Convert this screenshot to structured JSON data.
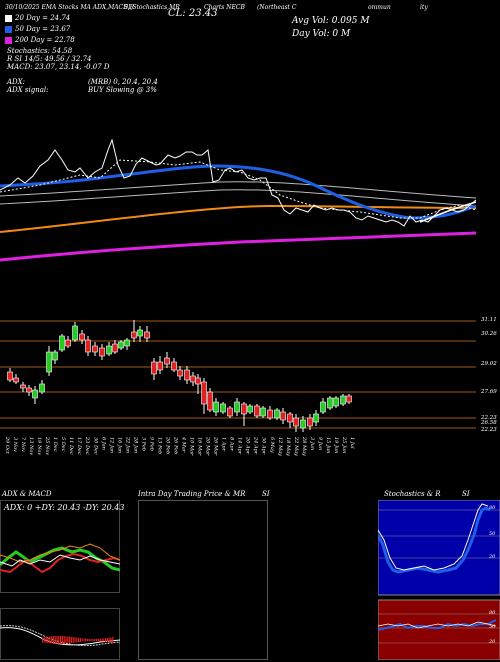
{
  "header": {
    "row1": [
      "30/10/2025 EMA Stocks MA ADX,MACD,R",
      "SI,Stochastics,MR",
      "CL: 23.43",
      "Charts NECB",
      "(Northeast C",
      "ommun",
      "ity"
    ],
    "avg_vol": "Avg Vol: 0.095 M",
    "day_vol": "Day Vol: 0 M",
    "ma20": "20 Day = 24.74",
    "ma50": "50 Day = 23.67",
    "ma200": "200 Day = 22.78",
    "stoch": "Stochastics: 54.58",
    "rsi": "R SI 14/5: 49.56 / 32.74",
    "macd": "MACD: 23.07, 23.14, -0.07 D",
    "adx": "ADX:",
    "adx_signal": "ADX signal:",
    "mrb": "(MRB) 0, 20.4, 20.4",
    "signal": "BUY Slowing @ 3%"
  },
  "colors": {
    "ma20": "#ffffff",
    "ma50": "#1f5fe6",
    "ma200": "#e020e0",
    "orange": "#f08a10",
    "up": "#22cc22",
    "down": "#dd2222",
    "level": "#a05a10",
    "panel_red": "#8a0000",
    "panel_blue": "#0000aa"
  },
  "chart_data": {
    "type": "candlestick",
    "price_levels": [
      "31.11",
      "30.26",
      "29.02",
      "27.69",
      "26.58",
      "22.23",
      "22.23"
    ],
    "dates": [
      "29 Oct",
      "31 Oct",
      "3 Nov",
      "5 Nov",
      "7 Nov",
      "11 Nov",
      "13 Nov",
      "17 Nov",
      "19 Nov",
      "21 Nov",
      "25 Nov",
      "27 Nov",
      "1 Dec",
      "3 Dec",
      "5 Dec",
      "9 Dec",
      "11 Dec",
      "15 Dec",
      "17 Dec",
      "19 Dec",
      "23 Dec",
      "26 Dec",
      "30 Dec",
      "2 Jan",
      "6 Jan",
      "8 Jan",
      "12 Jan",
      "14 Jan",
      "16 Jan",
      "20 Jan",
      "22 Jan",
      "26 Jan",
      "28 Jan",
      "30 Jan",
      "3 Feb",
      "5 Feb",
      "9 Feb",
      "11 Feb",
      "13 Feb",
      "18 Feb",
      "20 Feb",
      "24 Feb",
      "26 Feb",
      "2 Mar",
      "4 Mar",
      "6 Mar",
      "10 Mar",
      "12 Mar",
      "16 Mar",
      "18 Mar",
      "20 Mar",
      "24 Mar",
      "26 Mar",
      "30 Mar",
      "1 Apr",
      "6 Apr",
      "8 Apr",
      "10 Apr",
      "14 Apr",
      "16 Apr",
      "20 Apr",
      "22 Apr",
      "24 Apr",
      "28 Apr",
      "30 Apr",
      "4 May",
      "6 May",
      "8 May",
      "12 May",
      "14 May",
      "18 May",
      "20 May",
      "22 May",
      "26 May",
      "28 May",
      "1 Jun",
      "3 Jun",
      "5 Jun",
      "9 Jun",
      "11 Jun",
      "15 Jun",
      "17 Jun",
      "19 Jun",
      "23 Jun",
      "25 Jun",
      "29 Jun",
      "1 Jul"
    ]
  },
  "panels": {
    "adx_title": "ADX & MACD",
    "adx_values": "ADX: 0 +DY: 20.43 -DY: 20.43",
    "intraday_title": "Intra Day Trading Price & MR",
    "intraday_si": "SI",
    "stoch_title": "Stochastics & R",
    "stoch_si": "SI",
    "stoch_ticks": [
      "80",
      "50",
      "20"
    ],
    "rsi_ticks": [
      "80",
      "50",
      "20"
    ]
  }
}
